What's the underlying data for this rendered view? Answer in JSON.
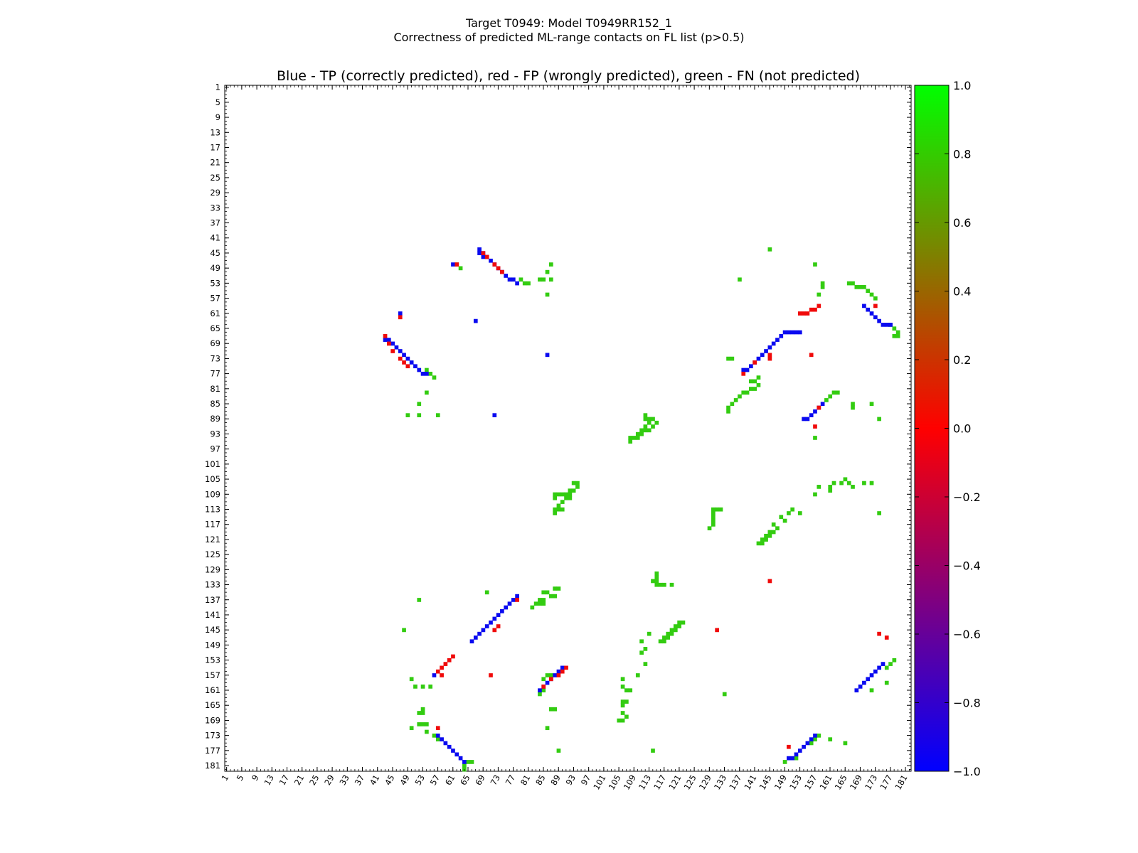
{
  "chart_data": {
    "type": "heatmap",
    "title": "Target T0949: Model T0949RR152_1",
    "subtitle": "Correctness of predicted ML-range contacts on FL list (p>0.5)",
    "plot_title": "Blue - TP (correctly predicted), red - FP (wrongly predicted), green - FN (not predicted)",
    "residue_range": [
      1,
      182
    ],
    "tick_labels": [
      "1",
      "5",
      "9",
      "13",
      "17",
      "21",
      "25",
      "29",
      "33",
      "37",
      "41",
      "45",
      "49",
      "53",
      "57",
      "61",
      "65",
      "69",
      "73",
      "77",
      "81",
      "85",
      "89",
      "93",
      "97",
      "101",
      "105",
      "109",
      "113",
      "117",
      "121",
      "125",
      "129",
      "133",
      "137",
      "141",
      "145",
      "149",
      "153",
      "157",
      "161",
      "165",
      "169",
      "173",
      "177",
      "181"
    ],
    "colorbar": {
      "min": -1.0,
      "max": 1.0,
      "ticks": [
        "1.0",
        "0.8",
        "0.6",
        "0.4",
        "0.2",
        "0.0",
        "−0.2",
        "−0.4",
        "−0.6",
        "−0.8",
        "−1.0"
      ],
      "colors": [
        "#0000ff",
        "#ff0000",
        "#00ff00"
      ]
    },
    "categories": {
      "TP": {
        "value": -1,
        "color": "#0a0af0"
      },
      "FP": {
        "value": 0,
        "color": "#f00a0a"
      },
      "FN": {
        "value": 0.8,
        "color": "#33cc11"
      }
    },
    "tp_contacts": [
      [
        68,
        44
      ],
      [
        68,
        45
      ],
      [
        69,
        45
      ],
      [
        69,
        46
      ],
      [
        70,
        46
      ],
      [
        71,
        47
      ],
      [
        72,
        48
      ],
      [
        73,
        49
      ],
      [
        74,
        50
      ],
      [
        75,
        51
      ],
      [
        76,
        52
      ],
      [
        77,
        52
      ],
      [
        78,
        53
      ],
      [
        43,
        68
      ],
      [
        44,
        68
      ],
      [
        45,
        69
      ],
      [
        46,
        70
      ],
      [
        47,
        71
      ],
      [
        48,
        72
      ],
      [
        49,
        73
      ],
      [
        50,
        74
      ],
      [
        51,
        75
      ],
      [
        52,
        76
      ],
      [
        53,
        77
      ],
      [
        54,
        77
      ],
      [
        141,
        74
      ],
      [
        142,
        73
      ],
      [
        143,
        72
      ],
      [
        144,
        71
      ],
      [
        145,
        70
      ],
      [
        146,
        69
      ],
      [
        147,
        68
      ],
      [
        148,
        67
      ],
      [
        149,
        66
      ],
      [
        150,
        66
      ],
      [
        151,
        66
      ],
      [
        152,
        66
      ],
      [
        153,
        66
      ],
      [
        140,
        75
      ],
      [
        139,
        76
      ],
      [
        138,
        76
      ],
      [
        170,
        59
      ],
      [
        171,
        60
      ],
      [
        172,
        61
      ],
      [
        173,
        62
      ],
      [
        174,
        63
      ],
      [
        175,
        64
      ],
      [
        176,
        64
      ],
      [
        177,
        64
      ],
      [
        157,
        87
      ],
      [
        158,
        86
      ],
      [
        159,
        85
      ],
      [
        156,
        88
      ],
      [
        155,
        89
      ],
      [
        154,
        89
      ],
      [
        66,
        148
      ],
      [
        67,
        147
      ],
      [
        68,
        146
      ],
      [
        69,
        145
      ],
      [
        70,
        144
      ],
      [
        71,
        143
      ],
      [
        72,
        142
      ],
      [
        73,
        141
      ],
      [
        74,
        140
      ],
      [
        75,
        139
      ],
      [
        76,
        138
      ],
      [
        77,
        137
      ],
      [
        78,
        136
      ],
      [
        88,
        157
      ],
      [
        87,
        158
      ],
      [
        86,
        159
      ],
      [
        85,
        160
      ],
      [
        84,
        161
      ],
      [
        89,
        156
      ],
      [
        90,
        155
      ],
      [
        57,
        173
      ],
      [
        58,
        174
      ],
      [
        59,
        175
      ],
      [
        60,
        176
      ],
      [
        61,
        177
      ],
      [
        62,
        178
      ],
      [
        63,
        179
      ],
      [
        64,
        180
      ],
      [
        157,
        173
      ],
      [
        156,
        174
      ],
      [
        155,
        175
      ],
      [
        154,
        176
      ],
      [
        153,
        177
      ],
      [
        152,
        178
      ],
      [
        151,
        179
      ],
      [
        150,
        179
      ],
      [
        175,
        154
      ],
      [
        174,
        155
      ],
      [
        173,
        156
      ],
      [
        172,
        157
      ],
      [
        171,
        158
      ],
      [
        170,
        159
      ],
      [
        169,
        160
      ],
      [
        168,
        161
      ],
      [
        61,
        48
      ],
      [
        86,
        72
      ],
      [
        72,
        88
      ],
      [
        47,
        61
      ],
      [
        56,
        157
      ],
      [
        67,
        63
      ]
    ],
    "fp_contacts": [
      [
        62,
        48
      ],
      [
        69,
        45
      ],
      [
        70,
        46
      ],
      [
        72,
        48
      ],
      [
        73,
        49
      ],
      [
        74,
        50
      ],
      [
        43,
        67
      ],
      [
        44,
        69
      ],
      [
        45,
        71
      ],
      [
        47,
        73
      ],
      [
        48,
        74
      ],
      [
        49,
        75
      ],
      [
        47,
        62
      ],
      [
        153,
        61
      ],
      [
        154,
        61
      ],
      [
        155,
        61
      ],
      [
        156,
        60
      ],
      [
        157,
        60
      ],
      [
        158,
        59
      ],
      [
        156,
        72
      ],
      [
        145,
        72
      ],
      [
        141,
        74
      ],
      [
        138,
        77
      ],
      [
        145,
        73
      ],
      [
        61,
        152
      ],
      [
        60,
        153
      ],
      [
        59,
        154
      ],
      [
        58,
        155
      ],
      [
        57,
        156
      ],
      [
        58,
        157
      ],
      [
        72,
        145
      ],
      [
        78,
        137
      ],
      [
        73,
        144
      ],
      [
        85,
        160
      ],
      [
        87,
        158
      ],
      [
        89,
        157
      ],
      [
        90,
        156
      ],
      [
        91,
        155
      ],
      [
        71,
        157
      ],
      [
        57,
        171
      ],
      [
        150,
        176
      ],
      [
        131,
        145
      ],
      [
        145,
        132
      ],
      [
        158,
        86
      ],
      [
        157,
        91
      ],
      [
        173,
        59
      ],
      [
        174,
        146
      ],
      [
        176,
        147
      ]
    ],
    "fn_contacts": [
      [
        145,
        44
      ],
      [
        157,
        48
      ],
      [
        159,
        53
      ],
      [
        87,
        48
      ],
      [
        86,
        50
      ],
      [
        85,
        52
      ],
      [
        87,
        52
      ],
      [
        79,
        52
      ],
      [
        80,
        53
      ],
      [
        81,
        53
      ],
      [
        84,
        52
      ],
      [
        86,
        56
      ],
      [
        63,
        49
      ],
      [
        62,
        48
      ],
      [
        137,
        52
      ],
      [
        159,
        54
      ],
      [
        158,
        56
      ],
      [
        170,
        54
      ],
      [
        171,
        55
      ],
      [
        172,
        56
      ],
      [
        173,
        57
      ],
      [
        166,
        53
      ],
      [
        167,
        53
      ],
      [
        168,
        54
      ],
      [
        169,
        54
      ],
      [
        134,
        73
      ],
      [
        135,
        73
      ],
      [
        177,
        64
      ],
      [
        178,
        65
      ],
      [
        179,
        66
      ],
      [
        178,
        67
      ],
      [
        179,
        67
      ],
      [
        54,
        76
      ],
      [
        55,
        77
      ],
      [
        56,
        78
      ],
      [
        54,
        82
      ],
      [
        52,
        85
      ],
      [
        49,
        88
      ],
      [
        52,
        88
      ],
      [
        57,
        88
      ],
      [
        134,
        86
      ],
      [
        134,
        87
      ],
      [
        135,
        85
      ],
      [
        136,
        84
      ],
      [
        137,
        83
      ],
      [
        138,
        82
      ],
      [
        139,
        82
      ],
      [
        140,
        81
      ],
      [
        141,
        81
      ],
      [
        142,
        80
      ],
      [
        140,
        79
      ],
      [
        141,
        79
      ],
      [
        142,
        78
      ],
      [
        162,
        82
      ],
      [
        163,
        82
      ],
      [
        161,
        83
      ],
      [
        167,
        85
      ],
      [
        167,
        86
      ],
      [
        172,
        85
      ],
      [
        174,
        89
      ],
      [
        157,
        94
      ],
      [
        160,
        84
      ],
      [
        112,
        88
      ],
      [
        112,
        89
      ],
      [
        113,
        89
      ],
      [
        114,
        89
      ],
      [
        113,
        90
      ],
      [
        115,
        90
      ],
      [
        112,
        91
      ],
      [
        114,
        91
      ],
      [
        111,
        92
      ],
      [
        112,
        92
      ],
      [
        113,
        92
      ],
      [
        110,
        93
      ],
      [
        111,
        93
      ],
      [
        108,
        94
      ],
      [
        109,
        94
      ],
      [
        110,
        94
      ],
      [
        108,
        95
      ],
      [
        93,
        106
      ],
      [
        94,
        106
      ],
      [
        94,
        107
      ],
      [
        92,
        108
      ],
      [
        93,
        108
      ],
      [
        88,
        109
      ],
      [
        89,
        109
      ],
      [
        90,
        109
      ],
      [
        91,
        109
      ],
      [
        92,
        109
      ],
      [
        91,
        110
      ],
      [
        92,
        110
      ],
      [
        88,
        110
      ],
      [
        90,
        111
      ],
      [
        89,
        112
      ],
      [
        88,
        113
      ],
      [
        89,
        113
      ],
      [
        90,
        113
      ],
      [
        88,
        114
      ],
      [
        130,
        113
      ],
      [
        131,
        113
      ],
      [
        132,
        113
      ],
      [
        130,
        114
      ],
      [
        130,
        115
      ],
      [
        130,
        116
      ],
      [
        130,
        117
      ],
      [
        129,
        118
      ],
      [
        162,
        106
      ],
      [
        164,
        106
      ],
      [
        165,
        105
      ],
      [
        166,
        106
      ],
      [
        167,
        107
      ],
      [
        170,
        106
      ],
      [
        172,
        106
      ],
      [
        158,
        107
      ],
      [
        157,
        109
      ],
      [
        161,
        107
      ],
      [
        161,
        108
      ],
      [
        148,
        115
      ],
      [
        149,
        116
      ],
      [
        146,
        117
      ],
      [
        147,
        118
      ],
      [
        145,
        119
      ],
      [
        146,
        119
      ],
      [
        144,
        120
      ],
      [
        145,
        120
      ],
      [
        143,
        121
      ],
      [
        144,
        121
      ],
      [
        142,
        122
      ],
      [
        143,
        122
      ],
      [
        153,
        114
      ],
      [
        150,
        114
      ],
      [
        151,
        113
      ],
      [
        174,
        114
      ],
      [
        115,
        131
      ],
      [
        115,
        132
      ],
      [
        114,
        132
      ],
      [
        115,
        133
      ],
      [
        116,
        133
      ],
      [
        117,
        133
      ],
      [
        119,
        133
      ],
      [
        115,
        130
      ],
      [
        87,
        136
      ],
      [
        88,
        136
      ],
      [
        88,
        134
      ],
      [
        89,
        134
      ],
      [
        85,
        135
      ],
      [
        86,
        135
      ],
      [
        84,
        137
      ],
      [
        85,
        137
      ],
      [
        83,
        138
      ],
      [
        84,
        138
      ],
      [
        85,
        138
      ],
      [
        82,
        139
      ],
      [
        52,
        137
      ],
      [
        70,
        135
      ],
      [
        48,
        145
      ],
      [
        121,
        143
      ],
      [
        122,
        143
      ],
      [
        120,
        144
      ],
      [
        121,
        144
      ],
      [
        119,
        145
      ],
      [
        120,
        145
      ],
      [
        118,
        146
      ],
      [
        119,
        146
      ],
      [
        117,
        147
      ],
      [
        118,
        147
      ],
      [
        116,
        148
      ],
      [
        117,
        148
      ],
      [
        113,
        146
      ],
      [
        111,
        148
      ],
      [
        112,
        150
      ],
      [
        111,
        151
      ],
      [
        112,
        154
      ],
      [
        110,
        157
      ],
      [
        106,
        158
      ],
      [
        106,
        160
      ],
      [
        107,
        161
      ],
      [
        108,
        161
      ],
      [
        106,
        164
      ],
      [
        107,
        164
      ],
      [
        106,
        165
      ],
      [
        106,
        167
      ],
      [
        107,
        168
      ],
      [
        106,
        169
      ],
      [
        105,
        169
      ],
      [
        84,
        162
      ],
      [
        85,
        161
      ],
      [
        85,
        158
      ],
      [
        86,
        157
      ],
      [
        87,
        157
      ],
      [
        87,
        166
      ],
      [
        88,
        166
      ],
      [
        86,
        171
      ],
      [
        89,
        177
      ],
      [
        114,
        177
      ],
      [
        133,
        162
      ],
      [
        53,
        166
      ],
      [
        52,
        167
      ],
      [
        53,
        167
      ],
      [
        52,
        170
      ],
      [
        53,
        170
      ],
      [
        54,
        170
      ],
      [
        50,
        171
      ],
      [
        54,
        172
      ],
      [
        56,
        173
      ],
      [
        57,
        174
      ],
      [
        53,
        160
      ],
      [
        55,
        160
      ],
      [
        51,
        160
      ],
      [
        50,
        158
      ],
      [
        65,
        180
      ],
      [
        66,
        180
      ],
      [
        64,
        181
      ],
      [
        64,
        182
      ],
      [
        149,
        180
      ],
      [
        152,
        179
      ],
      [
        158,
        173
      ],
      [
        157,
        174
      ],
      [
        156,
        175
      ],
      [
        176,
        155
      ],
      [
        177,
        154
      ],
      [
        178,
        153
      ],
      [
        176,
        159
      ],
      [
        172,
        161
      ],
      [
        161,
        174
      ],
      [
        165,
        175
      ]
    ]
  }
}
